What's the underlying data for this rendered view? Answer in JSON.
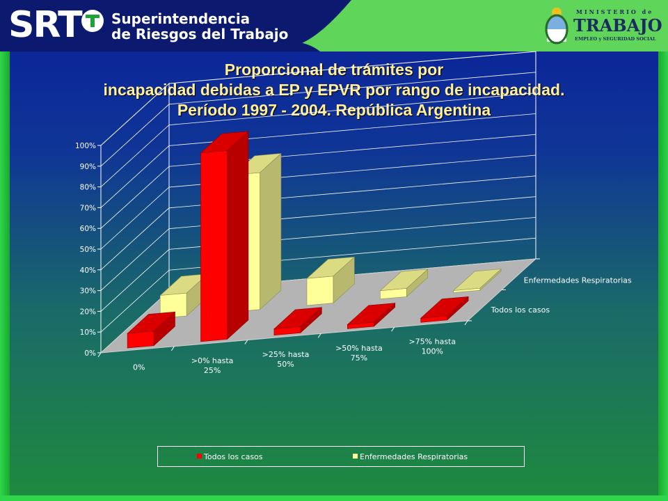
{
  "header": {
    "logo_text": "SRT",
    "org_line_1": "Superintendencia",
    "org_line_2": "de Riesgos del Trabajo",
    "ministry_small": "MINISTERIO de",
    "ministry_name": "TRABAJO",
    "ministry_sub": "EMPLEO y SEGURIDAD SOCIAL"
  },
  "colors": {
    "header_green": "#5fd65a",
    "header_navy": "#0b1a6e",
    "title_text": "#ffef9a",
    "todos_face": "#ff0000",
    "resp_face": "#ffff99"
  },
  "chart_data": {
    "type": "bar",
    "title": [
      "Proporcional de trámites por",
      "incapacidad debidas a  EP y EPVR por rango de incapacidad.",
      "Período 1997 - 2004. República Argentina"
    ],
    "categories": [
      "0%",
      ">0% hasta 25%",
      ">25% hasta 50%",
      ">50% hasta 75%",
      ">75% hasta 100%"
    ],
    "category_lines": [
      [
        "0%"
      ],
      [
        ">0% hasta",
        "25%"
      ],
      [
        ">25% hasta",
        "50%"
      ],
      [
        ">50% hasta",
        "75%"
      ],
      [
        ">75% hasta",
        "100%"
      ]
    ],
    "series": [
      {
        "name": "Todos los casos",
        "values": [
          7,
          91,
          3,
          2,
          2
        ],
        "color": "#ff0000"
      },
      {
        "name": "Enfermedades Respiratorias",
        "values": [
          11,
          66,
          13,
          4,
          1
        ],
        "color": "#ffff99"
      }
    ],
    "series_axis": [
      "Enfermedades Respiratorias",
      "Todos los casos"
    ],
    "yticks": [
      "0%",
      "10%",
      "20%",
      "30%",
      "40%",
      "50%",
      "60%",
      "70%",
      "80%",
      "90%",
      "100%"
    ],
    "ylim": [
      0,
      100
    ],
    "grid": true,
    "legend": "bottom",
    "projection": "3d"
  }
}
